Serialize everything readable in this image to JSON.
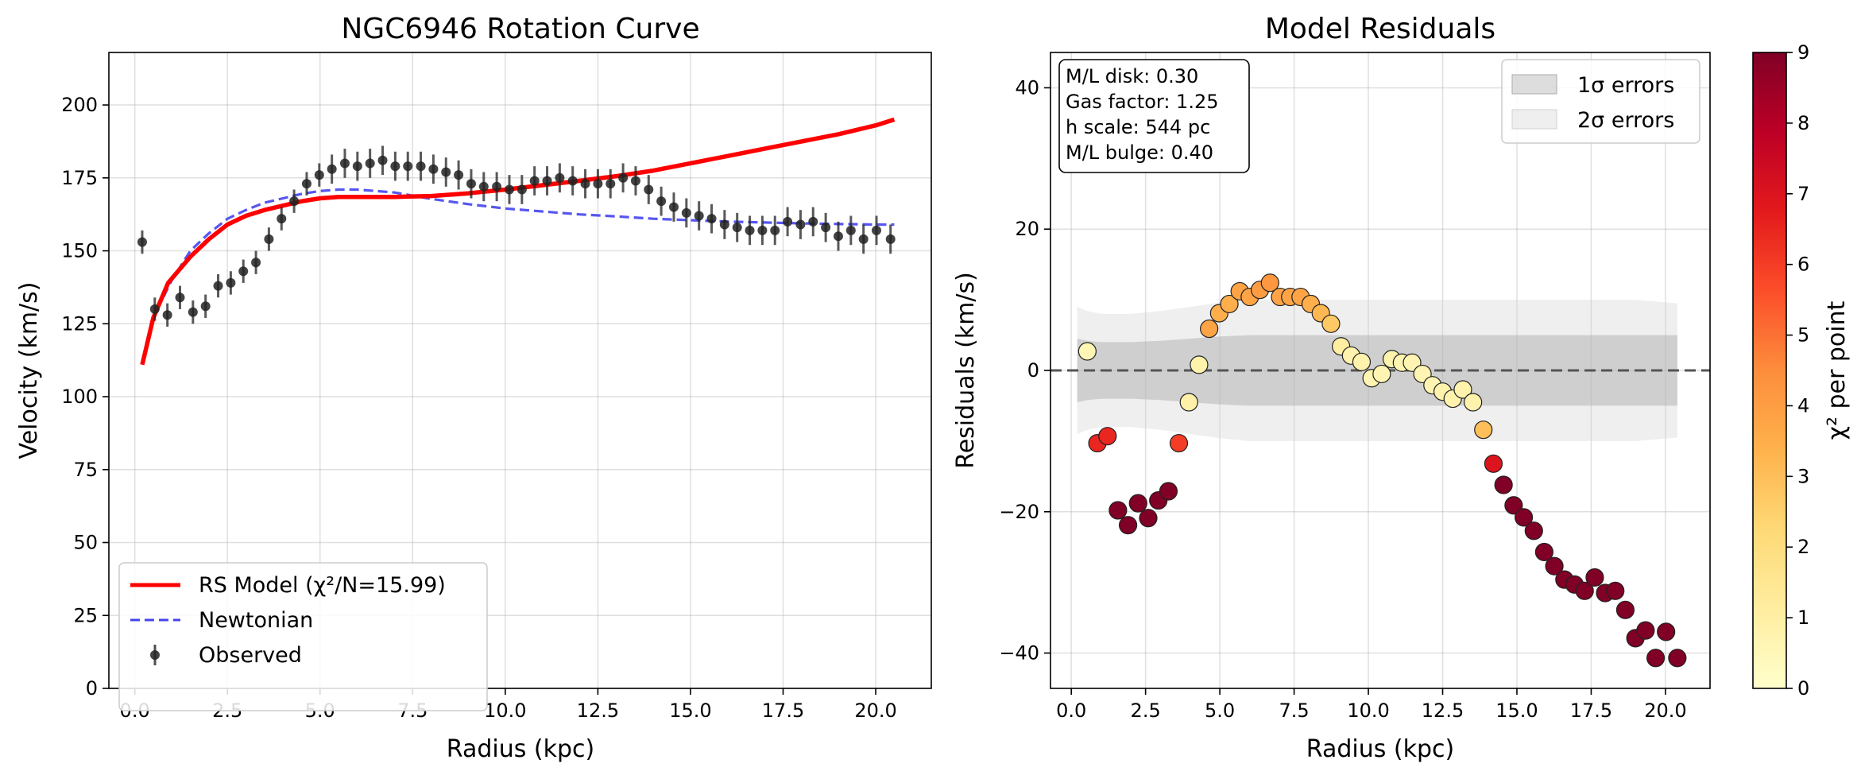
{
  "chart_data": [
    {
      "type": "line",
      "title": "NGC6946 Rotation Curve",
      "xlabel": "Radius (kpc)",
      "ylabel": "Velocity (km/s)",
      "xlim": [
        -0.7,
        21.5
      ],
      "ylim": [
        0,
        218
      ],
      "xticks": [
        0.0,
        2.5,
        5.0,
        7.5,
        10.0,
        12.5,
        15.0,
        17.5,
        20.0
      ],
      "xtick_labels": [
        "0.0",
        "2.5",
        "5.0",
        "7.5",
        "10.0",
        "12.5",
        "15.0",
        "17.5",
        "20.0"
      ],
      "yticks": [
        0,
        25,
        50,
        75,
        100,
        125,
        150,
        175,
        200
      ],
      "ytick_labels": [
        "0",
        "25",
        "50",
        "75",
        "100",
        "125",
        "150",
        "175",
        "200"
      ],
      "grid": true,
      "legend_position": "lower-left",
      "series": [
        {
          "name": "RS Model (χ²/N=15.99)",
          "style": "line",
          "color": "#ff0000",
          "x": [
            0.2,
            0.5,
            0.9,
            1.5,
            2.0,
            2.5,
            3.0,
            3.5,
            4.0,
            4.5,
            5.0,
            5.5,
            6.0,
            7.0,
            8.0,
            9.0,
            10.0,
            11.0,
            12.0,
            13.0,
            14.0,
            15.0,
            16.0,
            17.0,
            18.0,
            19.0,
            20.0,
            20.5
          ],
          "y": [
            111,
            127,
            139,
            148,
            154,
            159,
            162,
            164,
            165.5,
            167,
            168,
            168.5,
            168.5,
            168.5,
            168.8,
            169.7,
            171,
            172.5,
            174,
            175.6,
            177.5,
            180,
            182.5,
            185,
            187.5,
            190,
            193,
            195
          ]
        },
        {
          "name": "Newtonian",
          "style": "dashed",
          "color": "#4444ee",
          "x": [
            0.2,
            0.5,
            1.0,
            1.5,
            2.0,
            2.5,
            3.0,
            3.5,
            4.0,
            4.5,
            5.0,
            5.5,
            6.0,
            6.5,
            7.0,
            8.0,
            9.0,
            10.0,
            11.0,
            12.0,
            13.0,
            14.0,
            15.0,
            16.0,
            17.0,
            18.0,
            19.0,
            20.0,
            20.5
          ],
          "y": [
            111,
            127,
            140,
            150,
            156,
            161,
            164,
            166.5,
            168,
            169.5,
            170.5,
            171,
            171,
            170.5,
            170,
            167.8,
            166,
            164.5,
            163.5,
            162.5,
            161.8,
            161,
            160.5,
            160,
            159.7,
            159.4,
            159.2,
            159,
            159
          ]
        },
        {
          "name": "Observed",
          "style": "errorbar",
          "color": "#222222",
          "x": [
            0.2,
            0.54,
            0.88,
            1.22,
            1.57,
            1.91,
            2.25,
            2.59,
            2.93,
            3.27,
            3.62,
            3.96,
            4.3,
            4.64,
            4.98,
            5.32,
            5.67,
            6.01,
            6.35,
            6.69,
            7.03,
            7.37,
            7.72,
            8.06,
            8.4,
            8.74,
            9.08,
            9.42,
            9.77,
            10.11,
            10.45,
            10.79,
            11.13,
            11.47,
            11.82,
            12.16,
            12.5,
            12.84,
            13.18,
            13.52,
            13.87,
            14.21,
            14.55,
            14.89,
            15.23,
            15.57,
            15.92,
            16.26,
            16.6,
            16.94,
            17.28,
            17.62,
            17.97,
            18.31,
            18.65,
            18.99,
            19.33,
            19.67,
            20.02,
            20.4
          ],
          "y": [
            153,
            130,
            128,
            134,
            129,
            131,
            138,
            139,
            143,
            146,
            154,
            161,
            167,
            173,
            176,
            178,
            180,
            179,
            180,
            181,
            179,
            179,
            179,
            178,
            177,
            176,
            173,
            172,
            172,
            171,
            171,
            174,
            174,
            175,
            174,
            173,
            173,
            173,
            175,
            174,
            171,
            167,
            165,
            163,
            162,
            161,
            159,
            158,
            157,
            157,
            157,
            160,
            159,
            160,
            158,
            155,
            157,
            154,
            157,
            154
          ],
          "err": [
            4,
            4,
            4,
            4,
            4,
            4,
            4,
            4,
            4,
            4,
            4,
            4,
            4,
            4,
            4,
            5,
            5,
            5,
            5,
            5,
            5,
            5,
            5,
            5,
            5,
            5,
            5,
            5,
            5,
            5,
            5,
            5,
            5,
            5,
            5,
            5,
            5,
            5,
            5,
            5,
            5,
            5,
            5,
            5,
            5,
            5,
            5,
            5,
            5,
            5,
            5,
            5,
            5,
            5,
            5,
            5,
            5,
            5,
            5,
            5
          ]
        }
      ]
    },
    {
      "type": "scatter",
      "title": "Model Residuals",
      "xlabel": "Radius (kpc)",
      "ylabel": "Residuals (km/s)",
      "xlim": [
        -0.7,
        21.5
      ],
      "ylim": [
        -45,
        45
      ],
      "xticks": [
        0.0,
        2.5,
        5.0,
        7.5,
        10.0,
        12.5,
        15.0,
        17.5,
        20.0
      ],
      "xtick_labels": [
        "0.0",
        "2.5",
        "5.0",
        "7.5",
        "10.0",
        "12.5",
        "15.0",
        "17.5",
        "20.0"
      ],
      "yticks": [
        -40,
        -20,
        0,
        20,
        40
      ],
      "ytick_labels": [
        "−40",
        "−20",
        "0",
        "20",
        "40"
      ],
      "grid": true,
      "legend_position": "upper-right",
      "legend": [
        "1σ errors",
        "2σ errors"
      ],
      "band_x": [
        0.2,
        0.54,
        1.0,
        1.5,
        2.0,
        3.0,
        4.0,
        5.0,
        6.0,
        7.0,
        8.0,
        9.0,
        10.0,
        11.0,
        12.0,
        13.0,
        14.0,
        15.0,
        16.0,
        17.0,
        18.0,
        19.0,
        20.4
      ],
      "band_1sigma": [
        4.5,
        4.2,
        4.0,
        4.0,
        4.0,
        4.2,
        4.5,
        4.8,
        5.0,
        5.0,
        5.0,
        5.0,
        5.0,
        5.0,
        5.0,
        5.0,
        5.0,
        5.0,
        5.0,
        5.0,
        5.0,
        5.0,
        5.0
      ],
      "band_2sigma": [
        9.0,
        8.4,
        8.0,
        8.0,
        8.0,
        8.4,
        9.0,
        9.6,
        10.0,
        10.0,
        10.0,
        10.0,
        10.0,
        10.0,
        10.0,
        10.0,
        10.0,
        10.0,
        10.0,
        10.0,
        10.0,
        10.0,
        9.5
      ],
      "zero_line": 0,
      "points": {
        "x": [
          0.2,
          0.54,
          0.88,
          1.22,
          1.57,
          1.91,
          2.25,
          2.59,
          2.93,
          3.27,
          3.62,
          3.96,
          4.3,
          4.64,
          4.98,
          5.32,
          5.67,
          6.01,
          6.35,
          6.69,
          7.03,
          7.37,
          7.72,
          8.06,
          8.4,
          8.74,
          9.08,
          9.42,
          9.77,
          10.11,
          10.45,
          10.79,
          11.13,
          11.47,
          11.82,
          12.16,
          12.5,
          12.84,
          13.18,
          13.52,
          13.87,
          14.21,
          14.55,
          14.89,
          15.23,
          15.57,
          15.92,
          16.26,
          16.6,
          16.94,
          17.28,
          17.62,
          17.97,
          18.31,
          18.65,
          18.99,
          19.33,
          19.67,
          20.02,
          20.4
        ],
        "y": [
          41.5,
          2.7,
          -10.3,
          -9.3,
          -19.8,
          -21.9,
          -18.8,
          -20.9,
          -18.4,
          -17.1,
          -10.3,
          -4.5,
          0.8,
          5.9,
          8.1,
          9.4,
          11.2,
          10.4,
          11.4,
          12.4,
          10.4,
          10.4,
          10.4,
          9.4,
          8.1,
          6.6,
          3.4,
          2.1,
          1.2,
          -1.1,
          -0.5,
          1.6,
          1.1,
          1.1,
          -0.5,
          -2.1,
          -3.0,
          -4.0,
          -2.7,
          -4.5,
          -8.4,
          -13.2,
          -16.2,
          -19.1,
          -20.8,
          -22.7,
          -25.7,
          -27.7,
          -29.6,
          -30.3,
          -31.2,
          -29.3,
          -31.5,
          -31.2,
          -33.9,
          -37.9,
          -36.8,
          -40.7,
          -37.0,
          -40.7
        ],
        "chi2": [
          9,
          0.6,
          6.5,
          6.5,
          9,
          9,
          9,
          9,
          9,
          9,
          6,
          0.9,
          0.8,
          3.8,
          3.5,
          3.5,
          3.8,
          3.8,
          4.0,
          4.2,
          3.8,
          3.8,
          3.8,
          3.5,
          3.2,
          2.7,
          1.1,
          0.8,
          0.8,
          0.7,
          0.7,
          0.8,
          0.7,
          0.7,
          0.7,
          0.7,
          0.8,
          0.8,
          0.8,
          0.8,
          3.0,
          7.0,
          9,
          9,
          9,
          9,
          9,
          9,
          9,
          9,
          9,
          9,
          9,
          9,
          9,
          9,
          9,
          9,
          9,
          9
        ]
      },
      "annotation_lines": [
        "M/L disk: 0.30",
        "Gas factor: 1.25",
        "h scale: 544 pc",
        "M/L bulge: 0.40"
      ],
      "colorbar": {
        "label": "χ² per point",
        "min": 0,
        "max": 9,
        "ticks": [
          0,
          1,
          2,
          3,
          4,
          5,
          6,
          7,
          8,
          9
        ],
        "tick_labels": [
          "0",
          "1",
          "2",
          "3",
          "4",
          "5",
          "6",
          "7",
          "8",
          "9"
        ],
        "colormap": "YlOrRd"
      }
    }
  ]
}
